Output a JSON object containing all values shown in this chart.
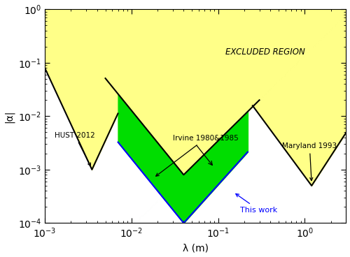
{
  "xlim": [
    0.001,
    3
  ],
  "ylim": [
    0.0001,
    1.0
  ],
  "xlabel": "λ (m)",
  "ylabel": "|α|",
  "excluded_region_color": "#FFFF88",
  "green_region_color": "#00DD00",
  "blue_line_color": "#0000FF",
  "black_line_color": "#000000",
  "excluded_label": "EXCLUDED REGION",
  "label_hust": "HUST 2012",
  "label_irvine": "Irvine 1980&1985",
  "label_maryland": "Maryland 1993",
  "label_thiswork": "This work",
  "background_color": "#FFFFFF",
  "hust_lmin": 0.0035,
  "hust_amin": 0.001,
  "hust_lrange": [
    0.001,
    0.007
  ],
  "irvine_lmin": 0.04,
  "irvine_amin": 0.0008,
  "irvine_lrange": [
    0.005,
    0.3
  ],
  "maryland_lmin": 1.2,
  "maryland_amin": 0.0005,
  "maryland_lrange": [
    0.25,
    3.0
  ],
  "thiswork_lmin": 0.04,
  "thiswork_amin": 0.0001,
  "thiswork_lrange": [
    0.007,
    0.22
  ]
}
